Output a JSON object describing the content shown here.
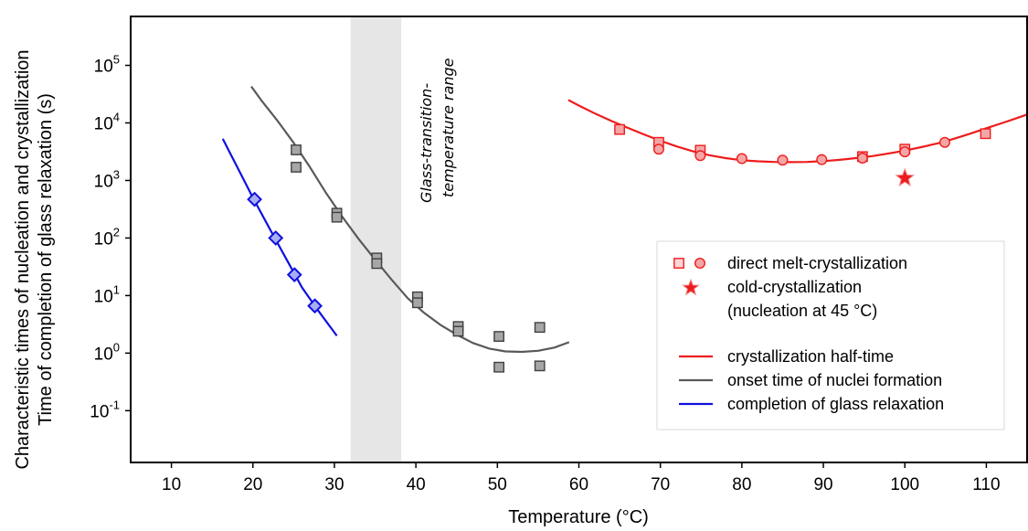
{
  "chart_data": {
    "type": "scatter",
    "xlabel": "Temperature (°C)",
    "ylabel_line1": "Characteristic times of nucleation and crystallization",
    "ylabel_line2": "Time of completion of glass relaxation (s)",
    "xlim": [
      5,
      115
    ],
    "ylim_log10": [
      -1.9,
      5.85
    ],
    "y_scale": "log",
    "grid": false,
    "xticks": [
      10,
      20,
      30,
      40,
      50,
      60,
      70,
      80,
      90,
      100,
      110
    ],
    "yticks": [
      {
        "value": 5,
        "label": "10",
        "exp": "5"
      },
      {
        "value": 4,
        "label": "10",
        "exp": "4"
      },
      {
        "value": 3,
        "label": "10",
        "exp": "3"
      },
      {
        "value": 2,
        "label": "10",
        "exp": "2"
      },
      {
        "value": 1,
        "label": "10",
        "exp": "1"
      },
      {
        "value": 0,
        "label": "10",
        "exp": "0"
      },
      {
        "value": -1,
        "label": "10",
        "exp": "-1"
      }
    ],
    "glass_transition_band": {
      "x_range": [
        32,
        38.2
      ],
      "annotation_line1": "Glass-transition-",
      "annotation_line2": "temperature range",
      "color": "#e6e6e6"
    },
    "colors": {
      "red": "#ee1c1c",
      "red_fill": "#f4a6a6",
      "gray": "#595959",
      "gray_fill": "#a6a6a6",
      "blue": "#1010e0",
      "blue_fill": "#a8aef0"
    },
    "series": [
      {
        "name": "crystallization half-time",
        "kind": "line",
        "color": "#ee1c1c",
        "points": [
          [
            58.7,
            25000
          ],
          [
            60,
            20000
          ],
          [
            62,
            14500
          ],
          [
            64,
            10800
          ],
          [
            66,
            8200
          ],
          [
            68,
            6300
          ],
          [
            70,
            4900
          ],
          [
            72,
            3900
          ],
          [
            74,
            3200
          ],
          [
            76,
            2750
          ],
          [
            78,
            2450
          ],
          [
            80,
            2250
          ],
          [
            82,
            2150
          ],
          [
            84,
            2100
          ],
          [
            86,
            2080
          ],
          [
            88,
            2100
          ],
          [
            90,
            2170
          ],
          [
            92,
            2280
          ],
          [
            94,
            2450
          ],
          [
            96,
            2650
          ],
          [
            98,
            2950
          ],
          [
            100,
            3300
          ],
          [
            102,
            3800
          ],
          [
            104,
            4400
          ],
          [
            106,
            5300
          ],
          [
            108,
            6500
          ],
          [
            110,
            8100
          ],
          [
            112,
            10000
          ],
          [
            114,
            12500
          ],
          [
            115,
            14000
          ]
        ]
      },
      {
        "name": "onset time of nuclei formation",
        "kind": "line",
        "color": "#595959",
        "points": [
          [
            19.8,
            43000
          ],
          [
            21,
            25000
          ],
          [
            23,
            11000
          ],
          [
            25,
            4500
          ],
          [
            27,
            1700
          ],
          [
            29,
            600
          ],
          [
            31,
            230
          ],
          [
            33,
            95
          ],
          [
            35,
            42
          ],
          [
            37,
            19
          ],
          [
            39,
            9
          ],
          [
            41,
            5
          ],
          [
            43,
            3.1
          ],
          [
            45,
            2.1
          ],
          [
            47,
            1.5
          ],
          [
            49,
            1.2
          ],
          [
            51,
            1.07
          ],
          [
            53,
            1.05
          ],
          [
            55,
            1.1
          ],
          [
            57,
            1.25
          ],
          [
            58.8,
            1.55
          ]
        ]
      },
      {
        "name": "completion of glass relaxation",
        "kind": "line",
        "color": "#1010e0",
        "points": [
          [
            16.3,
            5300
          ],
          [
            18,
            1800
          ],
          [
            20,
            500
          ],
          [
            22,
            150
          ],
          [
            24,
            46
          ],
          [
            26,
            14
          ],
          [
            28,
            5.5
          ],
          [
            30.3,
            2
          ]
        ]
      },
      {
        "name": "direct melt-crystallization",
        "kind": "markers",
        "marker": "square",
        "color": "#ee1c1c",
        "fill": "#f4a6a6",
        "points": [
          [
            65,
            7700
          ],
          [
            69.8,
            4600
          ],
          [
            74.9,
            3350
          ],
          [
            94.8,
            2600
          ],
          [
            100,
            3500
          ],
          [
            109.9,
            6500
          ]
        ]
      },
      {
        "name": "direct melt-crystallization (circles)",
        "kind": "markers",
        "marker": "circle",
        "color": "#ee1c1c",
        "fill": "#f4a6a6",
        "points": [
          [
            69.8,
            3500
          ],
          [
            74.9,
            2700
          ],
          [
            80,
            2400
          ],
          [
            85,
            2250
          ],
          [
            89.8,
            2300
          ],
          [
            94.8,
            2450
          ],
          [
            100,
            3150
          ],
          [
            104.9,
            4600
          ]
        ]
      },
      {
        "name": "cold-crystallization",
        "kind": "markers",
        "marker": "star",
        "color": "#ee1c1c",
        "fill": "#ee1c1c",
        "points": [
          [
            100,
            1100
          ]
        ]
      },
      {
        "name": "onset squares",
        "kind": "markers",
        "marker": "square",
        "color": "#404040",
        "fill": "#a6a6a6",
        "points": [
          [
            25.3,
            3400
          ],
          [
            25.3,
            1700
          ],
          [
            30.3,
            270
          ],
          [
            30.3,
            230
          ],
          [
            35.2,
            45
          ],
          [
            35.2,
            36
          ],
          [
            40.2,
            9.5
          ],
          [
            40.2,
            7.5
          ],
          [
            45.2,
            2.9
          ],
          [
            45.2,
            2.4
          ],
          [
            50.2,
            1.95
          ],
          [
            50.2,
            0.57
          ],
          [
            55.2,
            2.8
          ],
          [
            55.2,
            0.6
          ]
        ]
      },
      {
        "name": "relaxation diamonds",
        "kind": "markers",
        "marker": "diamond",
        "color": "#1010e0",
        "fill": "#a8aef0",
        "points": [
          [
            20.2,
            470
          ],
          [
            22.8,
            100
          ],
          [
            25.1,
            23
          ],
          [
            27.6,
            6.6
          ]
        ]
      }
    ],
    "legend": {
      "placement": "lower-right",
      "entries": [
        {
          "label": "direct melt-crystallization",
          "symbol": "square-circle"
        },
        {
          "label": "cold-crystallization",
          "symbol": "star"
        },
        {
          "label": "(nucleation at 45 °C)",
          "symbol": "none"
        },
        {
          "label": "crystallization half-time",
          "symbol": "line-red"
        },
        {
          "label": "onset time of nuclei formation",
          "symbol": "line-gray"
        },
        {
          "label": "completion of glass relaxation",
          "symbol": "line-blue"
        }
      ]
    }
  }
}
